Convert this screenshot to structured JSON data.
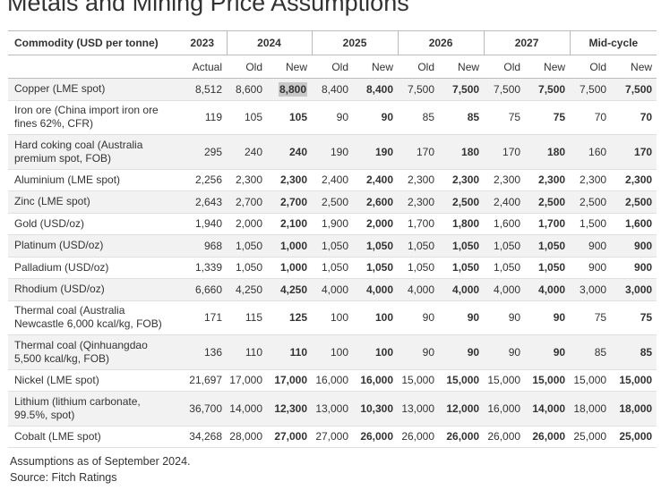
{
  "title": "Metals and Mining Price Assumptions",
  "header": {
    "commodity": "Commodity (USD per tonne)",
    "years": [
      "2023",
      "2024",
      "2025",
      "2026",
      "2027",
      "Mid-cycle"
    ],
    "sub": [
      "Actual",
      "Old",
      "New",
      "Old",
      "New",
      "Old",
      "New",
      "Old",
      "New",
      "Old",
      "New"
    ]
  },
  "rows": [
    {
      "name": "Copper (LME spot)",
      "v": [
        "8,512",
        "8,600",
        "8,800",
        "8,400",
        "8,400",
        "7,500",
        "7,500",
        "7,500",
        "7,500",
        "7,500",
        "7,500"
      ]
    },
    {
      "name": "Iron ore (China import iron ore fines 62%, CFR)",
      "v": [
        "119",
        "105",
        "105",
        "90",
        "90",
        "85",
        "85",
        "75",
        "75",
        "70",
        "70"
      ]
    },
    {
      "name": "Hard coking coal (Australia premium spot, FOB)",
      "v": [
        "295",
        "240",
        "240",
        "190",
        "190",
        "170",
        "180",
        "170",
        "180",
        "160",
        "170"
      ]
    },
    {
      "name": "Aluminium (LME spot)",
      "v": [
        "2,256",
        "2,300",
        "2,300",
        "2,400",
        "2,400",
        "2,300",
        "2,300",
        "2,300",
        "2,300",
        "2,300",
        "2,300"
      ]
    },
    {
      "name": "Zinc (LME spot)",
      "v": [
        "2,643",
        "2,700",
        "2,700",
        "2,500",
        "2,600",
        "2,300",
        "2,500",
        "2,400",
        "2,500",
        "2,500",
        "2,500"
      ]
    },
    {
      "name": "Gold (USD/oz)",
      "v": [
        "1,940",
        "2,000",
        "2,100",
        "1,900",
        "2,000",
        "1,700",
        "1,800",
        "1,600",
        "1,700",
        "1,500",
        "1,600"
      ]
    },
    {
      "name": "Platinum (USD/oz)",
      "v": [
        "968",
        "1,050",
        "1,000",
        "1,050",
        "1,050",
        "1,050",
        "1,050",
        "1,050",
        "1,050",
        "900",
        "900"
      ]
    },
    {
      "name": "Palladium (USD/oz)",
      "v": [
        "1,339",
        "1,050",
        "1,000",
        "1,050",
        "1,050",
        "1,050",
        "1,050",
        "1,050",
        "1,050",
        "900",
        "900"
      ]
    },
    {
      "name": "Rhodium (USD/oz)",
      "v": [
        "6,660",
        "4,250",
        "4,250",
        "4,000",
        "4,000",
        "4,000",
        "4,000",
        "4,000",
        "4,000",
        "3,000",
        "3,000"
      ]
    },
    {
      "name": "Thermal coal (Australia Newcastle 6,000 kcal/kg, FOB)",
      "v": [
        "171",
        "115",
        "125",
        "100",
        "100",
        "90",
        "90",
        "90",
        "90",
        "75",
        "75"
      ]
    },
    {
      "name": "Thermal coal (Qinhuangdao 5,500 kcal/kg, FOB)",
      "v": [
        "136",
        "110",
        "110",
        "100",
        "100",
        "90",
        "90",
        "90",
        "90",
        "85",
        "85"
      ]
    },
    {
      "name": "Nickel (LME spot)",
      "v": [
        "21,697",
        "17,000",
        "17,000",
        "16,000",
        "16,000",
        "15,000",
        "15,000",
        "15,000",
        "15,000",
        "15,000",
        "15,000"
      ]
    },
    {
      "name": "Lithium (lithium carbonate, 99.5%, spot)",
      "v": [
        "36,700",
        "14,000",
        "12,300",
        "13,000",
        "10,300",
        "13,000",
        "12,000",
        "16,000",
        "14,000",
        "18,000",
        "18,000"
      ]
    },
    {
      "name": "Cobalt (LME spot)",
      "v": [
        "34,268",
        "28,000",
        "27,000",
        "27,000",
        "26,000",
        "26,000",
        "26,000",
        "26,000",
        "26,000",
        "25,000",
        "25,000"
      ]
    }
  ],
  "footer": {
    "note": "Assumptions as of September 2024.",
    "source": "Source: Fitch Ratings"
  }
}
